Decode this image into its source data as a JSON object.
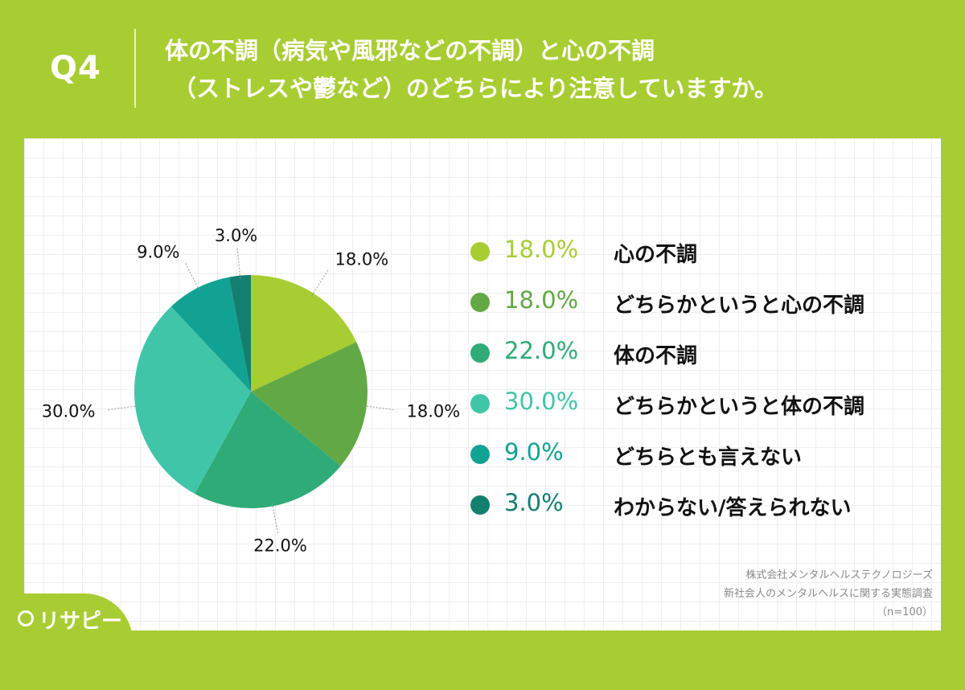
{
  "header": {
    "question_number": "Q4",
    "title_line1": "体の不調（病気や風邪などの不調）と心の不調",
    "title_line2": "（ストレスや鬱など）のどちらにより注意していますか。"
  },
  "source": {
    "line1": "株式会社メンタルヘルステクノロジーズ",
    "line2": "新社会人のメンタルヘルスに関する実態調査",
    "line3": "（n=100）"
  },
  "logo": {
    "text": "リサピー",
    "icon": "pin-icon"
  },
  "colors": {
    "background": "#a8cd32",
    "series": [
      "#a8cd32",
      "#62a844",
      "#2fab78",
      "#40c5a8",
      "#12a294",
      "#137f6e"
    ]
  },
  "chart_data": {
    "type": "pie",
    "categories": [
      "心の不調",
      "どちらかというと心の不調",
      "体の不調",
      "どちらかというと体の不調",
      "どちらとも言えない",
      "わからない/答えられない"
    ],
    "values": [
      18.0,
      18.0,
      22.0,
      30.0,
      9.0,
      3.0
    ],
    "labels": [
      "18.0%",
      "18.0%",
      "22.0%",
      "30.0%",
      "9.0%",
      "3.0%"
    ],
    "unit": "%",
    "legend_position": "right"
  }
}
